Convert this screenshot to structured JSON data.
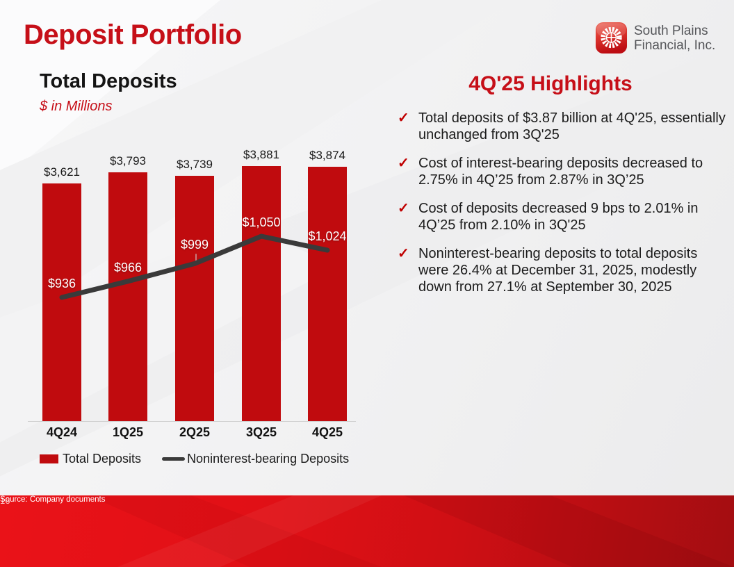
{
  "slide": {
    "title": "Deposit Portfolio",
    "page_number": "16",
    "source_note": "Source: Company documents",
    "accent_color": "#C60F18"
  },
  "logo": {
    "icon": "windmill-wheel-icon",
    "line1": "South Plains",
    "line2": "Financial, Inc."
  },
  "chart": {
    "title": "Total Deposits",
    "subtitle": "$ in Millions",
    "legend": [
      {
        "label": "Total Deposits",
        "type": "bar",
        "color": "#C00B0E"
      },
      {
        "label": "Noninterest-bearing Deposits",
        "type": "line",
        "color": "#3A3A3A"
      }
    ]
  },
  "chart_data": {
    "type": "bar",
    "title": "Total Deposits",
    "xlabel": "",
    "ylabel": "$ in Millions",
    "categories": [
      "4Q24",
      "1Q25",
      "2Q25",
      "3Q25",
      "4Q25"
    ],
    "series": [
      {
        "name": "Total Deposits",
        "type": "bar",
        "color": "#C00B0E",
        "values": [
          3621,
          3793,
          3739,
          3881,
          3874
        ],
        "labels": [
          "$3,621",
          "$3,793",
          "$3,739",
          "$3,881",
          "$3,874"
        ]
      },
      {
        "name": "Noninterest-bearing Deposits",
        "type": "line",
        "color": "#3A3A3A",
        "values": [
          936,
          966,
          999,
          1050,
          1024
        ],
        "labels": [
          "$936",
          "$966",
          "$999",
          "$1,050",
          "$1,024"
        ]
      }
    ],
    "grid": false,
    "legend_position": "bottom",
    "primary_ylim": [
      0,
      4000
    ],
    "secondary_ylim": [
      700,
      1150
    ]
  },
  "highlights": {
    "title": "4Q'25 Highlights",
    "bullet_icon": "✓",
    "bullets": [
      "Total deposits of $3.87 billion at 4Q'25, essentially unchanged from 3Q'25",
      "Cost of interest-bearing deposits decreased to 2.75% in 4Q’25 from 2.87% in 3Q’25",
      "Cost of deposits decreased 9 bps to 2.01% in 4Q’25 from 2.10% in 3Q'25",
      "Noninterest-bearing deposits to total deposits were 26.4% at December 31, 2025, modestly down from 27.1% at September 30, 2025"
    ]
  }
}
